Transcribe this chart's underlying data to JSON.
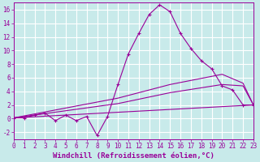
{
  "xlabel": "Windchill (Refroidissement éolien,°C)",
  "bg_color": "#c8eaea",
  "grid_color": "#ffffff",
  "line_color": "#990099",
  "xlim": [
    0,
    23
  ],
  "ylim": [
    -3,
    17
  ],
  "xticks": [
    0,
    1,
    2,
    3,
    4,
    5,
    6,
    7,
    8,
    9,
    10,
    11,
    12,
    13,
    14,
    15,
    16,
    17,
    18,
    19,
    20,
    21,
    22,
    23
  ],
  "yticks": [
    -2,
    0,
    2,
    4,
    6,
    8,
    10,
    12,
    14,
    16
  ],
  "line1_x": [
    0,
    1,
    2,
    3,
    4,
    5,
    6,
    7,
    8,
    9,
    10,
    11,
    12,
    13,
    14,
    15,
    16,
    17,
    18,
    19,
    20,
    21,
    22,
    23
  ],
  "line1_y": [
    0.1,
    0.1,
    0.5,
    0.8,
    -0.3,
    0.5,
    -0.3,
    0.3,
    -2.5,
    0.3,
    5.0,
    9.5,
    12.5,
    15.3,
    16.7,
    15.7,
    12.5,
    10.3,
    8.5,
    7.3,
    4.8,
    4.2,
    2.0,
    2.0
  ],
  "line2_x": [
    0,
    23
  ],
  "line2_y": [
    0.1,
    2.0
  ],
  "line3_x": [
    0,
    10,
    15,
    20,
    22,
    23
  ],
  "line3_y": [
    0.1,
    2.2,
    3.8,
    5.0,
    4.8,
    2.0
  ],
  "line4_x": [
    0,
    10,
    15,
    20,
    22,
    23
  ],
  "line4_y": [
    0.1,
    3.0,
    5.0,
    6.5,
    5.2,
    2.0
  ],
  "tick_fontsize": 5.5,
  "label_fontsize": 6.5
}
